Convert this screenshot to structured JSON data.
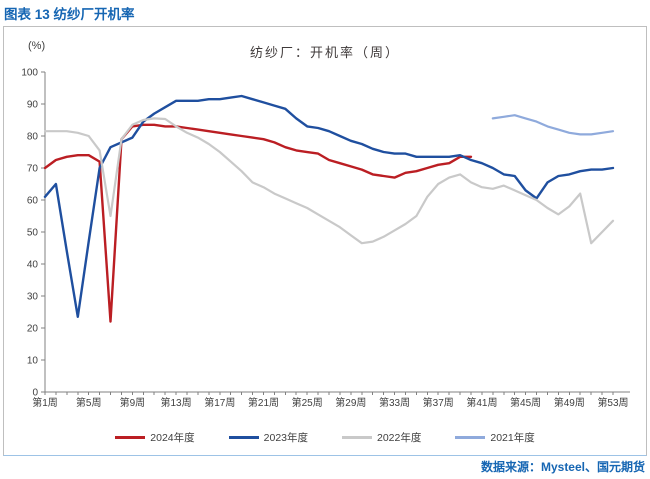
{
  "header": {
    "title": "图表 13 纺纱厂开机率",
    "accent_color": "#1666b3"
  },
  "footer": {
    "source": "数据来源：Mysteel、国元期货"
  },
  "chart_data": {
    "type": "line",
    "title": "纺纱厂：开机率（周）",
    "y_axis_unit": "(%)",
    "ylim": [
      0,
      100
    ],
    "y_ticks": [
      0,
      10,
      20,
      30,
      40,
      50,
      60,
      70,
      80,
      90,
      100
    ],
    "x_weeks_total": 53,
    "x_label_weeks": [
      1,
      5,
      9,
      13,
      17,
      21,
      25,
      29,
      33,
      37,
      41,
      45,
      49,
      53
    ],
    "x_tick_labels": [
      "第1周",
      "第5周",
      "第9周",
      "第13周",
      "第17周",
      "第21周",
      "第25周",
      "第29周",
      "第33周",
      "第37周",
      "第41周",
      "第45周",
      "第49周",
      "第53周"
    ],
    "grid": false,
    "legend_position": "bottom",
    "axis_color": "#808080",
    "series": [
      {
        "name": "2024年度",
        "color": "#bb1e23",
        "width": 2.4,
        "values": [
          70,
          72.5,
          73.5,
          74,
          74,
          72,
          22,
          79,
          83,
          83.5,
          83.5,
          83,
          83,
          82.5,
          82,
          81.5,
          81,
          80.5,
          80,
          79.5,
          79,
          78,
          76.5,
          75.5,
          75,
          74.5,
          72.5,
          71.5,
          70.5,
          69.5,
          68,
          67.5,
          67,
          68.5,
          69,
          70,
          71,
          71.5,
          73.5,
          73.5
        ]
      },
      {
        "name": "2023年度",
        "color": "#1f4f9f",
        "width": 2.4,
        "values": [
          61,
          65,
          44,
          23.5,
          47,
          70,
          76.5,
          78,
          79.5,
          84.5,
          87,
          89,
          91,
          91,
          91,
          91.5,
          91.5,
          92,
          92.5,
          91.5,
          90.5,
          89.5,
          88.5,
          85.5,
          83,
          82.5,
          81.5,
          80,
          78.5,
          77.5,
          76,
          75,
          74.5,
          74.5,
          73.5,
          73.5,
          73.5,
          73.5,
          74,
          72.5,
          71.5,
          70,
          68,
          67.5,
          63,
          60.5,
          65.5,
          67.5,
          68,
          69,
          69.5,
          69.5,
          70
        ]
      },
      {
        "name": "2022年度",
        "color": "#c9c9c9",
        "width": 2.2,
        "values": [
          81.5,
          81.5,
          81.5,
          81,
          80,
          75.5,
          55,
          79,
          83.5,
          85,
          85.5,
          85.3,
          83,
          81,
          79.5,
          77.5,
          75,
          72,
          69,
          65.5,
          64,
          62,
          60.5,
          59,
          57.5,
          55.5,
          53.5,
          51.5,
          49,
          46.5,
          47,
          48.5,
          50.5,
          52.5,
          55,
          61,
          65,
          67,
          68,
          65.5,
          64,
          63.5,
          64.5,
          63,
          61.5,
          60,
          57.5,
          55.5,
          58,
          62,
          46.5,
          50,
          53.5
        ]
      },
      {
        "name": "2021年度",
        "color": "#8faadc",
        "width": 2.2,
        "values": [
          null,
          null,
          null,
          null,
          null,
          null,
          null,
          null,
          null,
          null,
          null,
          null,
          null,
          null,
          null,
          null,
          null,
          null,
          null,
          null,
          null,
          null,
          null,
          null,
          null,
          null,
          null,
          null,
          null,
          null,
          null,
          null,
          null,
          null,
          null,
          null,
          null,
          null,
          null,
          null,
          null,
          85.5,
          86,
          86.5,
          85.5,
          84.5,
          83,
          82,
          81,
          80.5,
          80.5,
          81,
          81.5
        ]
      }
    ]
  }
}
